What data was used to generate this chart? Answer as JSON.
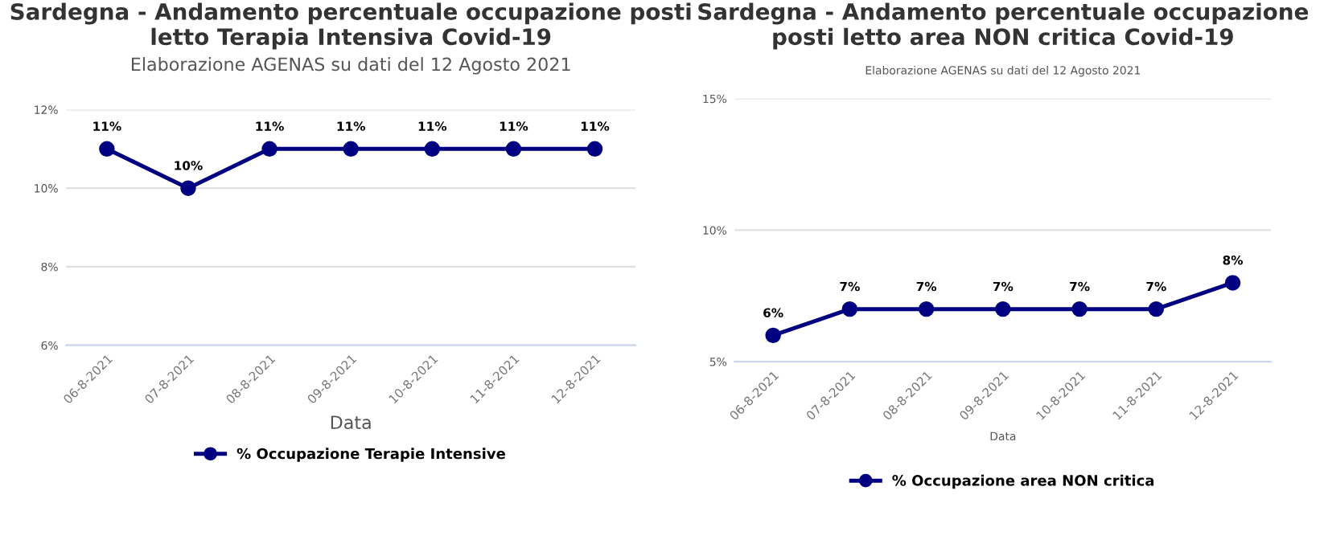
{
  "chart_data": [
    {
      "type": "line",
      "title": "Sardegna - Andamento percentuale occupazione posti\nletto Terapia Intensiva Covid-19",
      "subtitle": "Elaborazione AGENAS su dati del 12 Agosto 2021",
      "xlabel": "Data",
      "categories": [
        "06-8-2021",
        "07-8-2021",
        "08-8-2021",
        "09-8-2021",
        "10-8-2021",
        "11-8-2021",
        "12-8-2021"
      ],
      "series": [
        {
          "name": "% Occupazione Terapie Intensive",
          "color": "#000080",
          "values": [
            11,
            10,
            11,
            11,
            11,
            11,
            11
          ],
          "value_labels": [
            "11%",
            "10%",
            "11%",
            "11%",
            "11%",
            "11%",
            "11%"
          ]
        }
      ],
      "ylim": [
        6,
        12
      ],
      "yticks": [
        {
          "value": 6,
          "label": "6%"
        },
        {
          "value": 8,
          "label": "8%"
        },
        {
          "value": 10,
          "label": "10%"
        },
        {
          "value": 12,
          "label": "12%"
        }
      ],
      "grid": "y",
      "legend": "bottom",
      "marker": "circle",
      "line_style": "solid"
    },
    {
      "type": "line",
      "title": "Sardegna - Andamento percentuale occupazione\nposti letto area NON critica Covid-19",
      "subtitle": "Elaborazione AGENAS su dati del 12 Agosto 2021",
      "xlabel": "Data",
      "categories": [
        "06-8-2021",
        "07-8-2021",
        "08-8-2021",
        "09-8-2021",
        "10-8-2021",
        "11-8-2021",
        "12-8-2021"
      ],
      "series": [
        {
          "name": "% Occupazione area NON critica",
          "color": "#000080",
          "values": [
            6,
            7,
            7,
            7,
            7,
            7,
            8
          ],
          "value_labels": [
            "6%",
            "7%",
            "7%",
            "7%",
            "7%",
            "7%",
            "8%"
          ]
        }
      ],
      "ylim": [
        5,
        15
      ],
      "yticks": [
        {
          "value": 5,
          "label": "5%"
        },
        {
          "value": 10,
          "label": "10%"
        },
        {
          "value": 15,
          "label": "15%"
        }
      ],
      "grid": "y",
      "legend": "bottom",
      "marker": "circle",
      "line_style": "solid"
    }
  ]
}
